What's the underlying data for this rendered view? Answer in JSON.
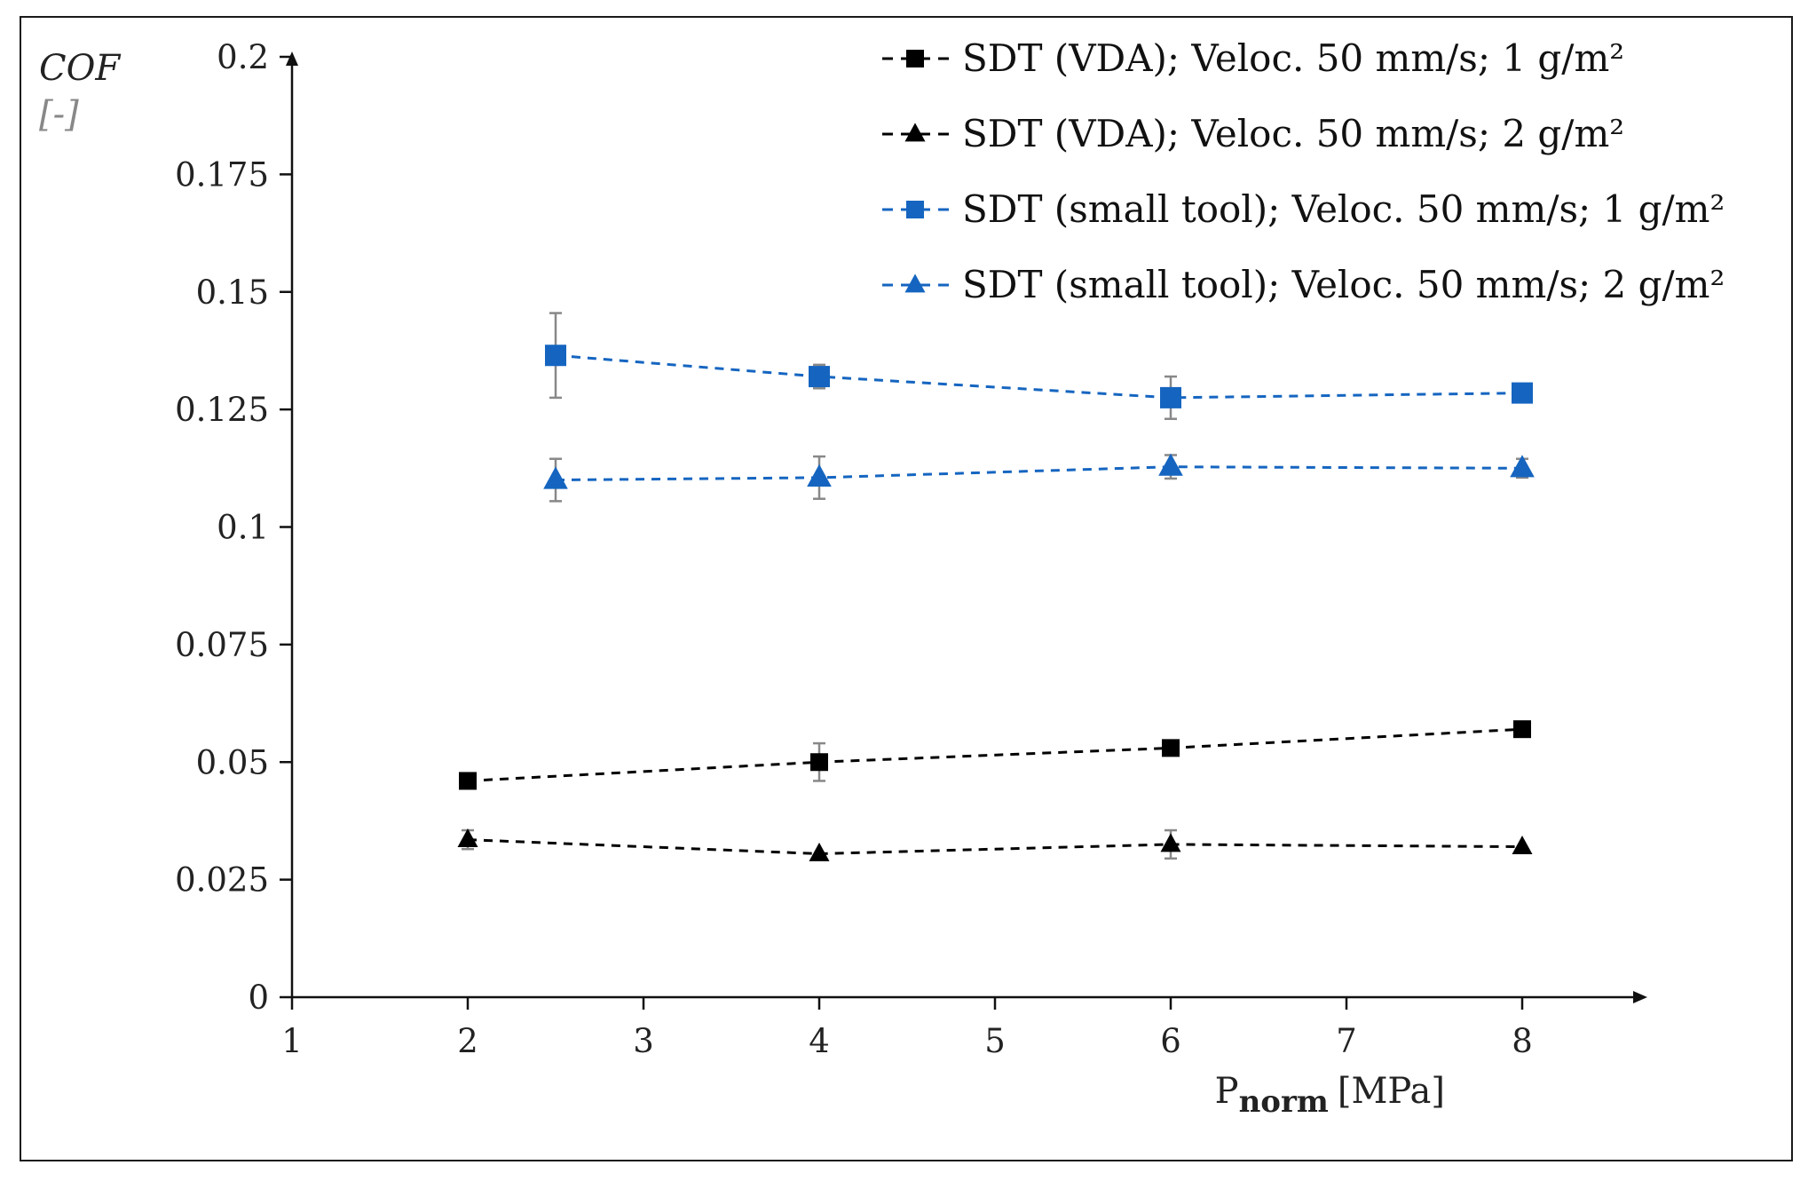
{
  "chart_data": {
    "type": "line",
    "ylabel": "COF",
    "ylabel_unit": "[-]",
    "xlabel_main": "P",
    "xlabel_sub": "norm",
    "xlabel_unit": "[MPa]",
    "xlim": [
      1,
      8.5
    ],
    "ylim": [
      0,
      0.2
    ],
    "x_ticks": [
      "1",
      "2",
      "3",
      "4",
      "5",
      "6",
      "7",
      "8"
    ],
    "y_ticks": [
      "0",
      "0.025",
      "0.05",
      "0.075",
      "0.1",
      "0.125",
      "0.15",
      "0.175",
      "0.2"
    ],
    "legend_position": "top-right",
    "series": [
      {
        "name": "SDT (VDA); Veloc.  50 mm/s;  1 g/m²",
        "marker": "square",
        "color": "#000000",
        "x": [
          2,
          4,
          6,
          8
        ],
        "y": [
          0.046,
          0.05,
          0.053,
          0.057
        ],
        "err": [
          0,
          0.004,
          0.001,
          0.001
        ]
      },
      {
        "name": "SDT (VDA); Veloc.  50 mm/s;  2 g/m²",
        "marker": "triangle",
        "color": "#000000",
        "x": [
          2,
          4,
          6,
          8
        ],
        "y": [
          0.0335,
          0.0305,
          0.0325,
          0.032
        ],
        "err": [
          0.002,
          0,
          0.003,
          0
        ]
      },
      {
        "name": "SDT (small tool); Veloc.  50 mm/s; 1 g/m²",
        "marker": "square",
        "color": "#1565c0",
        "x": [
          2.5,
          4,
          6,
          8
        ],
        "y": [
          0.1365,
          0.132,
          0.1275,
          0.1285
        ],
        "err": [
          0.009,
          0.0025,
          0.0045,
          0.0015
        ]
      },
      {
        "name": "SDT (small tool); Veloc.  50 mm/s; 2 g/m²",
        "marker": "triangle",
        "color": "#1565c0",
        "x": [
          2.5,
          4,
          6,
          8
        ],
        "y": [
          0.11,
          0.1105,
          0.1128,
          0.1125
        ],
        "err": [
          0.0045,
          0.0045,
          0.0025,
          0.002
        ]
      }
    ]
  }
}
